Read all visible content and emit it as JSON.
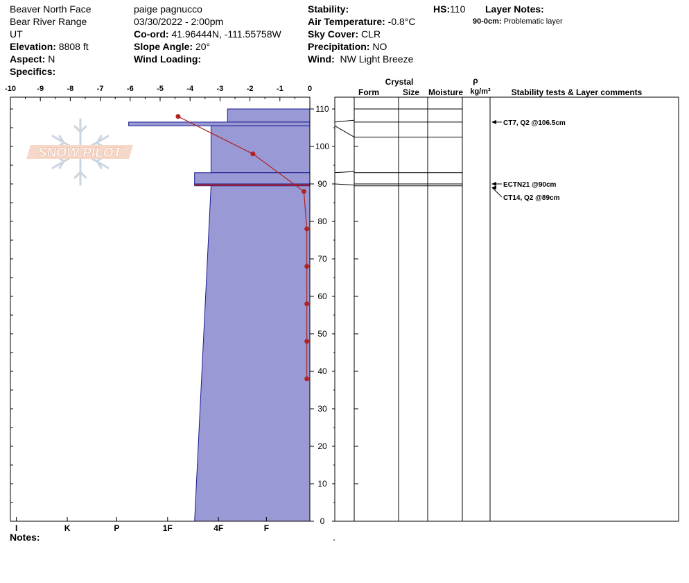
{
  "site": {
    "location": "Beaver North Face",
    "range": "Bear River Range",
    "state": "UT",
    "elevation_label": "Elevation:",
    "elevation": "8808 ft",
    "aspect_label": "Aspect:",
    "aspect": "N",
    "specifics_label": "Specifics:"
  },
  "observer": {
    "name": "paige pagnucco",
    "datetime": "03/30/2022 - 2:00pm",
    "coord_label": "Co-ord:",
    "coord": "41.96444N, -111.55758W",
    "slope_label": "Slope Angle:",
    "slope": "20°",
    "wind_loading_label": "Wind Loading:"
  },
  "conditions": {
    "stability_label": "Stability:",
    "air_temp_label": "Air Temperature:",
    "air_temp": "-0.8°C",
    "sky_label": "Sky Cover:",
    "sky": "CLR",
    "precip_label": "Precipitation:",
    "precip": "NO",
    "wind_label": "Wind:",
    "wind": "NW Light Breeze"
  },
  "hs": {
    "label": "HS:",
    "value": "110"
  },
  "layer_notes": {
    "title": "Layer Notes:",
    "items": [
      {
        "range": "90-0cm:",
        "text": "Problematic layer"
      }
    ]
  },
  "notes_label": "Notes:",
  "logo_text": "SNOW PILOT",
  "colors": {
    "hardness_fill": "#9999d6",
    "temperature": "#b22222"
  },
  "chart_data": {
    "type": "snow-profile",
    "temp_axis": {
      "ticks": [
        -10,
        -9,
        -8,
        -7,
        -6,
        -5,
        -4,
        -3,
        -2,
        -1,
        0
      ],
      "range": [
        -10,
        0
      ]
    },
    "height_axis": {
      "ticks": [
        0,
        10,
        20,
        30,
        40,
        50,
        60,
        70,
        80,
        90,
        100,
        110
      ],
      "range": [
        0,
        112
      ]
    },
    "hardness_axis": {
      "labels": [
        "I",
        "K",
        "P",
        "1F",
        "4F",
        "F"
      ],
      "positions": [
        -9.8,
        -8.1,
        -6.45,
        -4.75,
        -3.05,
        -1.45
      ]
    },
    "hardness_profile": [
      {
        "top": 110,
        "bottom": 106.5,
        "hardness": -2.75
      },
      {
        "top": 106.5,
        "bottom": 105.5,
        "hardness": -6.05
      },
      {
        "top": 105.5,
        "bottom": 93,
        "hardness": -3.3
      },
      {
        "top": 93,
        "bottom": 90,
        "hardness": -3.85
      },
      {
        "top": 90,
        "bottom": 89.5,
        "hardness": -3.85
      },
      {
        "top": 89.5,
        "bottom": 0,
        "hardness_top": -3.3,
        "hardness_bottom": -3.85
      }
    ],
    "temperature_profile": [
      {
        "height": 108,
        "temp": -4.4
      },
      {
        "height": 98,
        "temp": -1.9
      },
      {
        "height": 88,
        "temp": -0.2
      },
      {
        "height": 78,
        "temp": -0.1
      },
      {
        "height": 68,
        "temp": -0.1
      },
      {
        "height": 58,
        "temp": -0.1
      },
      {
        "height": 48,
        "temp": -0.1
      },
      {
        "height": 38,
        "temp": -0.1
      }
    ],
    "layer_boundaries": [
      110,
      106.5,
      102.5,
      93,
      90,
      89.5
    ],
    "table_headers": {
      "crystal": "Crystal",
      "form": "Form",
      "size": "Size",
      "moisture": "Moisture",
      "rho": "ρ",
      "density_unit": "kg/m³",
      "comments": "Stability tests & Layer comments"
    },
    "stability_tests": [
      {
        "height": 106.5,
        "label": "CT7, Q2 @106.5cm"
      },
      {
        "height": 90,
        "label": "ECTN21 @90cm"
      },
      {
        "height": 89,
        "label": "CT14, Q2 @89cm"
      }
    ]
  }
}
